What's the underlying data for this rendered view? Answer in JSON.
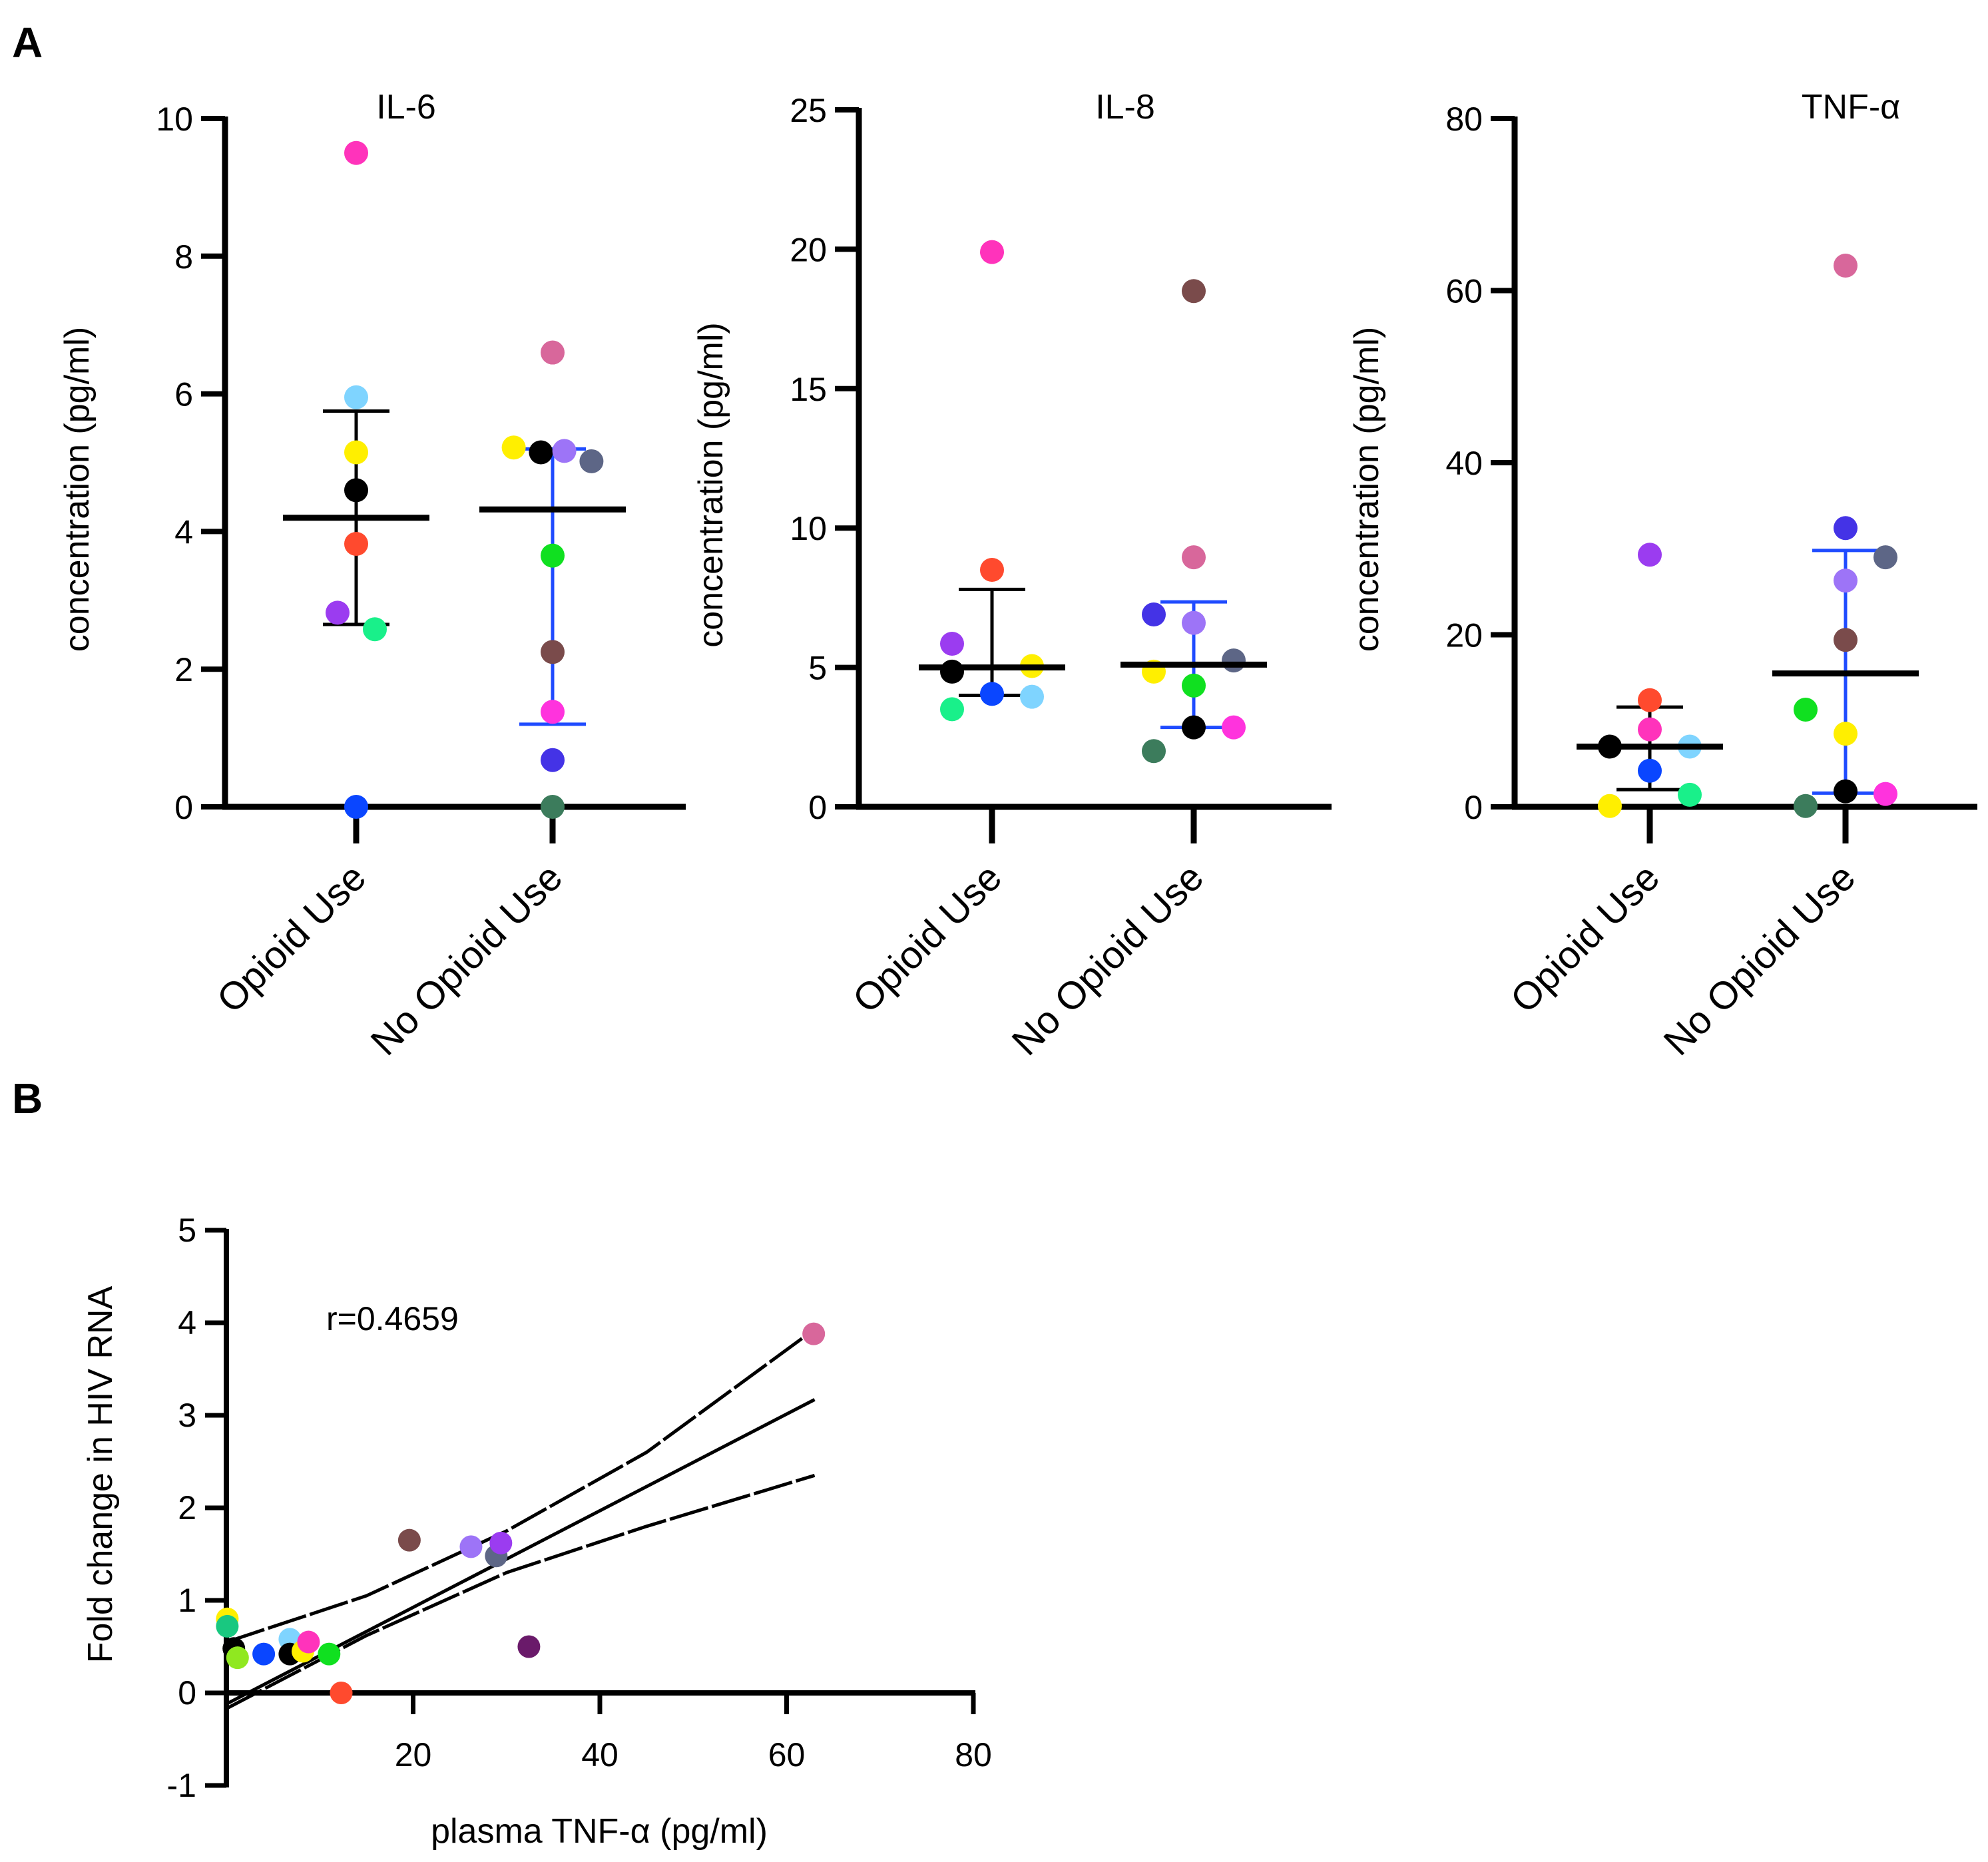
{
  "panels": {
    "a": "A",
    "b": "B"
  },
  "chart_data": [
    {
      "type": "scatter",
      "id": "il6",
      "title": "IL-6",
      "ylabel": "concentration (pg/ml)",
      "categories": [
        "Opioid Use",
        "No Opioid Use"
      ],
      "ylim": [
        0,
        10
      ],
      "yticks": [
        0,
        2,
        4,
        6,
        8,
        10
      ],
      "groups": [
        {
          "name": "Opioid Use",
          "mean": 4.2,
          "sd_low": 2.65,
          "sd_high": 5.75,
          "sd_color": "#000000",
          "points": [
            {
              "offset": 0,
              "y": 9.5,
              "color": "#ff33bb"
            },
            {
              "offset": 0,
              "y": 5.95,
              "color": "#7fd4ff"
            },
            {
              "offset": 0,
              "y": 5.15,
              "color": "#ffef00"
            },
            {
              "offset": 0,
              "y": 4.6,
              "color": "#000000"
            },
            {
              "offset": 0,
              "y": 3.82,
              "color": "#ff4a2e"
            },
            {
              "offset": -0.35,
              "y": 2.82,
              "color": "#9b3cf0"
            },
            {
              "offset": 0.35,
              "y": 2.58,
              "color": "#19f08a"
            },
            {
              "offset": 0,
              "y": 0,
              "color": "#0a46ff"
            }
          ]
        },
        {
          "name": "No Opioid Use",
          "mean": 4.32,
          "sd_low": 1.2,
          "sd_high": 5.2,
          "sd_color": "#1f4bff",
          "points": [
            {
              "offset": 0,
              "y": 6.6,
              "color": "#d8679b"
            },
            {
              "offset": -0.73,
              "y": 5.22,
              "color": "#ffef00"
            },
            {
              "offset": -0.22,
              "y": 5.15,
              "color": "#000000"
            },
            {
              "offset": 0.22,
              "y": 5.17,
              "color": "#9d74f7"
            },
            {
              "offset": 0.73,
              "y": 5.02,
              "color": "#5d6686"
            },
            {
              "offset": 0,
              "y": 3.65,
              "color": "#10e020"
            },
            {
              "offset": 0,
              "y": 2.25,
              "color": "#7a4b4b"
            },
            {
              "offset": 0,
              "y": 1.38,
              "color": "#ff33dd"
            },
            {
              "offset": 0,
              "y": 0.68,
              "color": "#4433e6"
            },
            {
              "offset": 0,
              "y": 0,
              "color": "#3c7c5c"
            }
          ]
        }
      ]
    },
    {
      "type": "scatter",
      "id": "il8",
      "title": "IL-8",
      "ylabel": "concentration (pg/ml)",
      "categories": [
        "Opioid Use",
        "No Opioid Use"
      ],
      "ylim": [
        0,
        25
      ],
      "yticks": [
        0,
        5,
        10,
        15,
        20,
        25
      ],
      "groups": [
        {
          "name": "Opioid Use",
          "mean": 5.0,
          "sd_low": 4.0,
          "sd_high": 7.8,
          "sd_color": "#000000",
          "points": [
            {
              "offset": 0,
              "y": 19.9,
              "color": "#ff33bb"
            },
            {
              "offset": 0,
              "y": 8.5,
              "color": "#ff4a2e"
            },
            {
              "offset": -0.75,
              "y": 5.85,
              "color": "#9b3cf0"
            },
            {
              "offset": -0.75,
              "y": 4.85,
              "color": "#000000"
            },
            {
              "offset": 0.75,
              "y": 5.05,
              "color": "#ffef00"
            },
            {
              "offset": 0,
              "y": 4.05,
              "color": "#0a46ff"
            },
            {
              "offset": 0.75,
              "y": 3.95,
              "color": "#7fd4ff"
            },
            {
              "offset": -0.75,
              "y": 3.5,
              "color": "#19f08a"
            }
          ]
        },
        {
          "name": "No Opioid Use",
          "mean": 5.1,
          "sd_low": 2.85,
          "sd_high": 7.35,
          "sd_color": "#1f4bff",
          "points": [
            {
              "offset": 0,
              "y": 18.5,
              "color": "#7a4b4b"
            },
            {
              "offset": 0,
              "y": 8.95,
              "color": "#d8679b"
            },
            {
              "offset": -0.75,
              "y": 6.9,
              "color": "#4433e6"
            },
            {
              "offset": 0,
              "y": 6.6,
              "color": "#9d74f7"
            },
            {
              "offset": 0.75,
              "y": 5.25,
              "color": "#5d6686"
            },
            {
              "offset": -0.75,
              "y": 4.85,
              "color": "#ffef00"
            },
            {
              "offset": 0,
              "y": 4.35,
              "color": "#10e020"
            },
            {
              "offset": 0,
              "y": 2.85,
              "color": "#000000"
            },
            {
              "offset": 0.75,
              "y": 2.85,
              "color": "#ff33dd"
            },
            {
              "offset": -0.75,
              "y": 2.0,
              "color": "#3c7c5c"
            }
          ]
        }
      ]
    },
    {
      "type": "scatter",
      "id": "tnf",
      "title": "TNF-α",
      "ylabel": "concentration (pg/ml)",
      "categories": [
        "Opioid Use",
        "No Opioid Use"
      ],
      "ylim": [
        0,
        80
      ],
      "yticks": [
        0,
        20,
        40,
        60,
        80
      ],
      "groups": [
        {
          "name": "Opioid Use",
          "mean": 7.0,
          "sd_low": 2.0,
          "sd_high": 11.6,
          "sd_color": "#000000",
          "points": [
            {
              "offset": 0,
              "y": 29.3,
              "color": "#9b3cf0"
            },
            {
              "offset": 0,
              "y": 12.4,
              "color": "#ff4a2e"
            },
            {
              "offset": 0,
              "y": 9.0,
              "color": "#ff33bb"
            },
            {
              "offset": -0.75,
              "y": 7.0,
              "color": "#000000"
            },
            {
              "offset": 0.75,
              "y": 7.0,
              "color": "#7fd4ff"
            },
            {
              "offset": 0,
              "y": 4.2,
              "color": "#0a46ff"
            },
            {
              "offset": 0.75,
              "y": 1.4,
              "color": "#19f08a"
            },
            {
              "offset": -0.75,
              "y": 0.1,
              "color": "#ffef00"
            }
          ]
        },
        {
          "name": "No Opioid Use",
          "mean": 15.5,
          "sd_low": 1.6,
          "sd_high": 29.8,
          "sd_color": "#1f4bff",
          "points": [
            {
              "offset": 0,
              "y": 62.9,
              "color": "#d8679b"
            },
            {
              "offset": 0,
              "y": 32.4,
              "color": "#4433e6"
            },
            {
              "offset": 0.75,
              "y": 29.0,
              "color": "#5d6686"
            },
            {
              "offset": 0,
              "y": 26.3,
              "color": "#9d74f7"
            },
            {
              "offset": 0,
              "y": 19.4,
              "color": "#7a4b4b"
            },
            {
              "offset": -0.75,
              "y": 11.3,
              "color": "#10e020"
            },
            {
              "offset": 0,
              "y": 8.5,
              "color": "#ffef00"
            },
            {
              "offset": 0,
              "y": 1.8,
              "color": "#000000"
            },
            {
              "offset": 0.75,
              "y": 1.5,
              "color": "#ff33dd"
            },
            {
              "offset": -0.75,
              "y": 0.1,
              "color": "#3c7c5c"
            }
          ]
        }
      ]
    },
    {
      "type": "scatter",
      "id": "corr",
      "xlabel": "plasma TNF-α (pg/ml)",
      "ylabel": "Fold change in HIV RNA",
      "xlim": [
        0,
        80
      ],
      "ylim": [
        -1,
        5
      ],
      "xticks": [
        20,
        40,
        60,
        80
      ],
      "yticks": [
        -1,
        0,
        1,
        2,
        3,
        4,
        5
      ],
      "annotation": "r=0.4659",
      "fit": {
        "x0": 0,
        "y0": -0.12,
        "x1": 63,
        "y1": 3.17
      },
      "ci_upper": [
        [
          0,
          0.55
        ],
        [
          15,
          1.05
        ],
        [
          30,
          1.75
        ],
        [
          45,
          2.6
        ],
        [
          63,
          3.93
        ]
      ],
      "ci_lower": [
        [
          0,
          -0.17
        ],
        [
          15,
          0.62
        ],
        [
          30,
          1.3
        ],
        [
          45,
          1.8
        ],
        [
          63,
          2.35
        ]
      ],
      "points": [
        {
          "x": 0.1,
          "y": 0.8,
          "color": "#ffef00"
        },
        {
          "x": 0.1,
          "y": 0.72,
          "color": "#19c880"
        },
        {
          "x": 0.8,
          "y": 0.48,
          "color": "#000000"
        },
        {
          "x": 1.2,
          "y": 0.38,
          "color": "#90e820"
        },
        {
          "x": 4.0,
          "y": 0.42,
          "color": "#0a46ff"
        },
        {
          "x": 6.8,
          "y": 0.58,
          "color": "#7fd4ff"
        },
        {
          "x": 6.8,
          "y": 0.42,
          "color": "#000000"
        },
        {
          "x": 8.2,
          "y": 0.45,
          "color": "#ffef00"
        },
        {
          "x": 8.8,
          "y": 0.55,
          "color": "#ff33bb"
        },
        {
          "x": 11.0,
          "y": 0.42,
          "color": "#10e020"
        },
        {
          "x": 12.3,
          "y": 0.0,
          "color": "#ff4a2e"
        },
        {
          "x": 19.6,
          "y": 1.65,
          "color": "#7a4b4b"
        },
        {
          "x": 26.2,
          "y": 1.58,
          "color": "#9d74f7"
        },
        {
          "x": 28.9,
          "y": 1.48,
          "color": "#5d6686"
        },
        {
          "x": 29.4,
          "y": 1.62,
          "color": "#9b3cf0"
        },
        {
          "x": 32.4,
          "y": 0.5,
          "color": "#6a1a6a"
        },
        {
          "x": 62.9,
          "y": 3.88,
          "color": "#d8679b"
        }
      ]
    }
  ]
}
